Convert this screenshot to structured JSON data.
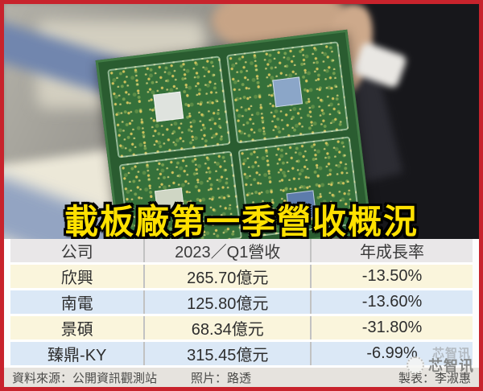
{
  "headline": {
    "text": "載板廠第一季營收概況"
  },
  "chart_data": {
    "type": "table",
    "title": "載板廠第一季營收概況",
    "columns": [
      "公司",
      "2023／Q1營收",
      "年成長率"
    ],
    "rows": [
      [
        "欣興",
        "265.70億元",
        "-13.50%"
      ],
      [
        "南電",
        "125.80億元",
        "-13.60%"
      ],
      [
        "景碩",
        "68.34億元",
        "-31.80%"
      ],
      [
        "臻鼎-KY",
        "315.45億元",
        "-6.99%"
      ]
    ]
  },
  "footer": {
    "source": "資料來源：公開資訊觀測站",
    "photo_credit": "照片：路透",
    "table_credit": "製表：李淑惠"
  },
  "watermark": {
    "text": "芯智讯"
  },
  "photo": {
    "subject": "hand holding 2x2 PCB substrate panel"
  },
  "colors": {
    "frame_red": "#c8232c",
    "headline_yellow": "#ffe100",
    "header_gray": "#e9e7e8",
    "row_cream": "#faf5dc",
    "row_blue": "#dbe8f6",
    "footer_gray": "#e6e3de",
    "pcb_green": "#35703a"
  }
}
